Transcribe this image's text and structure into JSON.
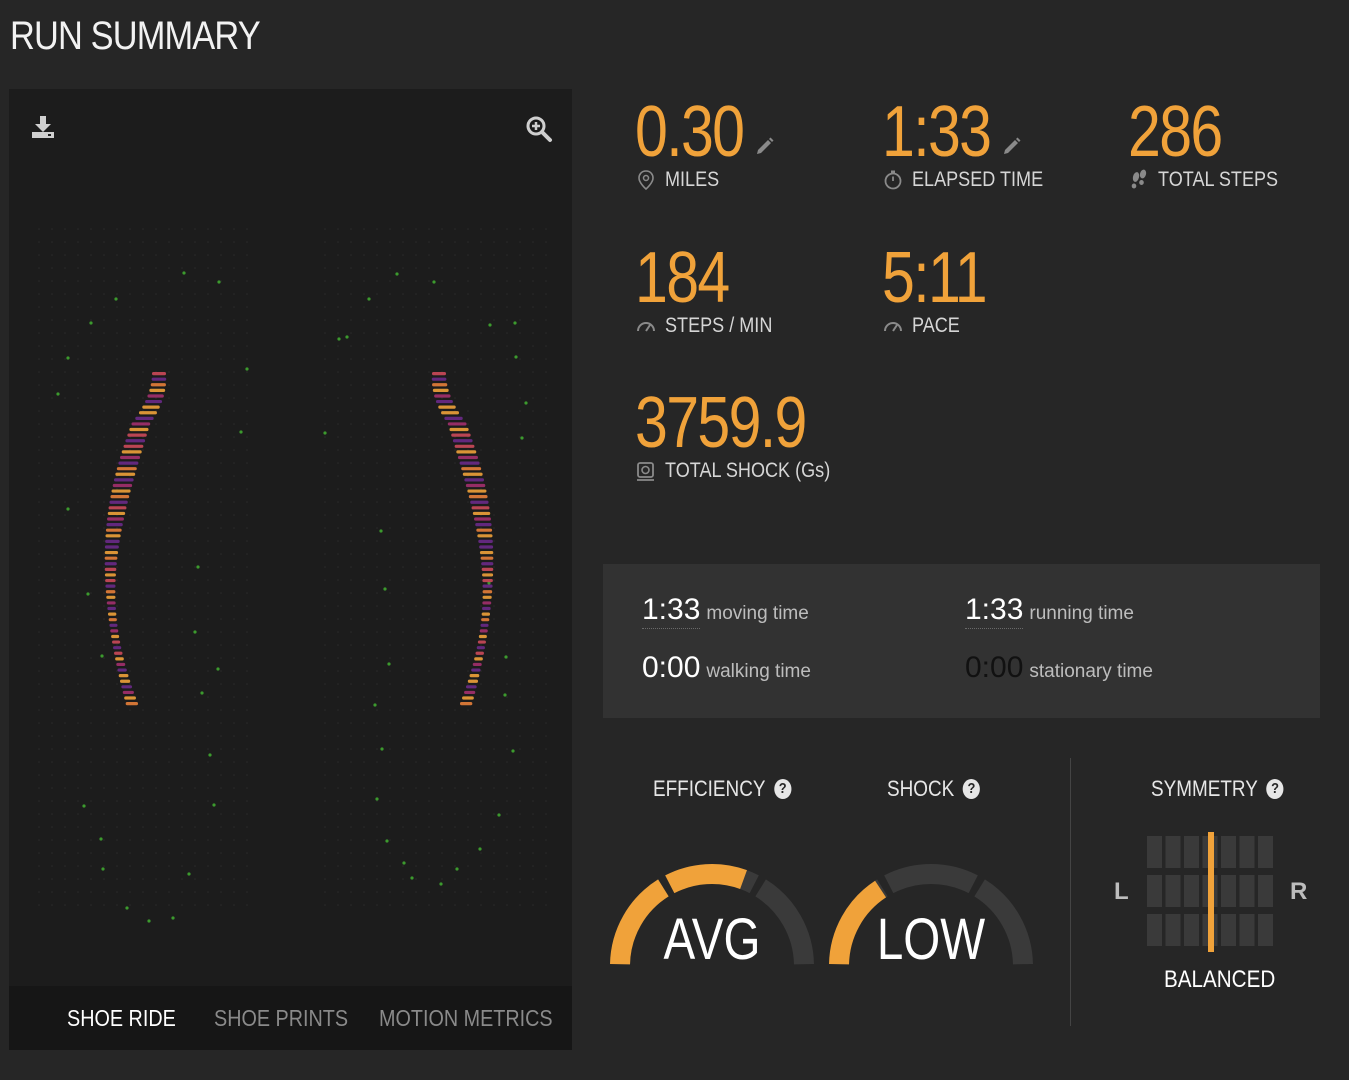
{
  "page": {
    "title": "RUN SUMMARY"
  },
  "colors": {
    "accent": "#f0a23a",
    "background": "#262626",
    "panel": "#1c1c1c"
  },
  "viz_panel": {
    "download_icon": "download-icon",
    "zoom_icon": "zoom-in-icon",
    "tabs": [
      {
        "label": "SHOE RIDE",
        "active": true
      },
      {
        "label": "SHOE PRINTS",
        "active": false
      },
      {
        "label": "MOTION METRICS",
        "active": false
      }
    ]
  },
  "stats": {
    "miles": {
      "value": "0.30",
      "label": "MILES",
      "icon": "map-pin-icon",
      "editable": true
    },
    "elapsed": {
      "value": "1:33",
      "label": "ELAPSED TIME",
      "icon": "stopwatch-icon",
      "editable": true
    },
    "steps": {
      "value": "286",
      "label": "TOTAL STEPS",
      "icon": "footprints-icon"
    },
    "cadence": {
      "value": "184",
      "label": "STEPS / MIN",
      "icon": "speedometer-icon"
    },
    "pace": {
      "value": "5:11",
      "label": "PACE",
      "icon": "speedometer-icon"
    },
    "shock": {
      "value": "3759.9",
      "label": "TOTAL SHOCK (Gs)",
      "icon": "shock-icon"
    }
  },
  "times": {
    "moving": {
      "value": "1:33",
      "label": "moving time"
    },
    "running": {
      "value": "1:33",
      "label": "running time"
    },
    "walking": {
      "value": "0:00",
      "label": "walking time"
    },
    "stationary": {
      "value": "0:00",
      "label": "stationary time"
    }
  },
  "gauges": {
    "efficiency": {
      "title": "EFFICIENCY",
      "word": "AVG",
      "level": 0.5
    },
    "shock": {
      "title": "SHOCK",
      "word": "LOW",
      "level": 0.2
    },
    "symmetry": {
      "title": "SYMMETRY",
      "left": "L",
      "right": "R",
      "status": "BALANCED"
    }
  }
}
